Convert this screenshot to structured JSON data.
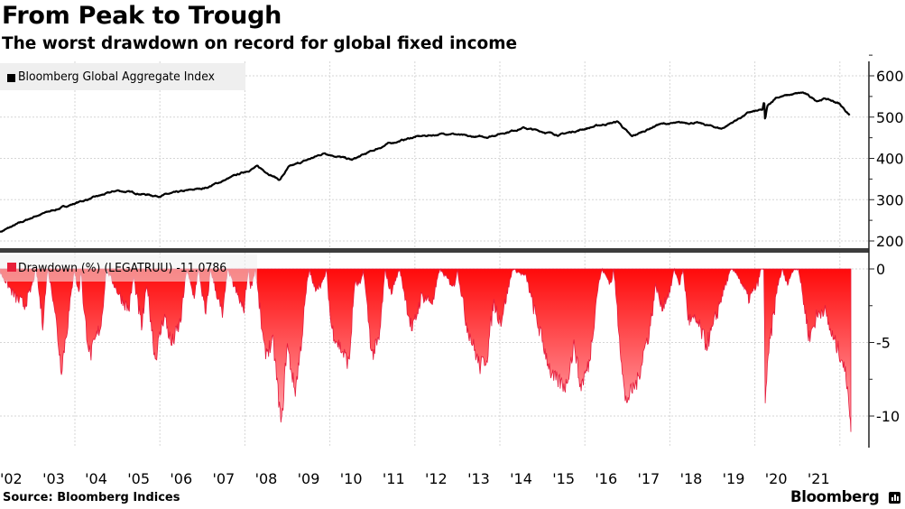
{
  "header": {
    "title": "From Peak to Trough",
    "subtitle": "The worst drawdown on record for global fixed income"
  },
  "footer": {
    "source": "Source: Bloomberg Indices",
    "brand": "Bloomberg"
  },
  "chart_data": [
    {
      "type": "line",
      "legend": "Bloomberg Global Aggregate Index",
      "legend_placement": "top-left",
      "color": "#000000",
      "xlim": [
        2002.24,
        2022.26
      ],
      "ylim": [
        190,
        630
      ],
      "y_ticks": [
        "200",
        "300",
        "400",
        "500",
        "600"
      ],
      "y_axis_side": "right",
      "grid": true,
      "x_tick_labels": [
        "'02",
        "'03",
        "'04",
        "'05",
        "'06",
        "'07",
        "'08",
        "'09",
        "'10",
        "'11",
        "'12",
        "'13",
        "'14",
        "'15",
        "'16",
        "'17",
        "'18",
        "'19",
        "'20",
        "'21"
      ],
      "points": [
        [
          2002.24,
          222
        ],
        [
          2003.09,
          261
        ],
        [
          2004.15,
          296
        ],
        [
          2005.0,
          322
        ],
        [
          2005.95,
          309
        ],
        [
          2007.12,
          330
        ],
        [
          2008.29,
          380
        ],
        [
          2008.82,
          348
        ],
        [
          2009.03,
          378
        ],
        [
          2009.88,
          413
        ],
        [
          2010.52,
          396
        ],
        [
          2011.37,
          435
        ],
        [
          2012.0,
          452
        ],
        [
          2012.85,
          461
        ],
        [
          2013.28,
          452
        ],
        [
          2013.7,
          452
        ],
        [
          2014.55,
          474
        ],
        [
          2015.4,
          457
        ],
        [
          2016.25,
          478
        ],
        [
          2016.78,
          489
        ],
        [
          2017.1,
          452
        ],
        [
          2017.74,
          483
        ],
        [
          2018.59,
          487
        ],
        [
          2019.22,
          472
        ],
        [
          2019.86,
          511
        ],
        [
          2020.18,
          517
        ],
        [
          2020.22,
          538
        ],
        [
          2020.24,
          490
        ],
        [
          2020.29,
          525
        ],
        [
          2020.5,
          548
        ],
        [
          2021.13,
          559
        ],
        [
          2021.45,
          540
        ],
        [
          2021.66,
          545
        ],
        [
          2021.98,
          533
        ],
        [
          2022.24,
          504
        ]
      ]
    },
    {
      "type": "area",
      "legend": "Drawdown (%) (LEGATRUU)",
      "last_value": "-11.0786",
      "legend_placement": "top-left",
      "color": "#ff0000",
      "ylim": [
        -12.2,
        0.8
      ],
      "y_ticks": [
        "0",
        "-5",
        "-10"
      ],
      "y_axis_side": "right",
      "grid": true,
      "points": [
        [
          2002.24,
          -0.2
        ],
        [
          2002.6,
          -1.9
        ],
        [
          2002.81,
          -2.4
        ],
        [
          2002.94,
          -1.6
        ],
        [
          2003.09,
          0
        ],
        [
          2003.24,
          -3.6
        ],
        [
          2003.36,
          0
        ],
        [
          2003.51,
          -2.2
        ],
        [
          2003.68,
          -6.75
        ],
        [
          2003.87,
          -2.8
        ],
        [
          2003.98,
          0
        ],
        [
          2004.09,
          -1.6
        ],
        [
          2004.15,
          0
        ],
        [
          2004.21,
          -2.8
        ],
        [
          2004.36,
          -5.9
        ],
        [
          2004.62,
          -3.6
        ],
        [
          2004.74,
          0
        ],
        [
          2005.06,
          -1.8
        ],
        [
          2005.27,
          -2.7
        ],
        [
          2005.38,
          -0.5
        ],
        [
          2005.57,
          -3.9
        ],
        [
          2005.7,
          -1.0
        ],
        [
          2005.89,
          -6.1
        ],
        [
          2006.1,
          -3.0
        ],
        [
          2006.27,
          -5.1
        ],
        [
          2006.48,
          -3.6
        ],
        [
          2006.63,
          0
        ],
        [
          2006.8,
          -1.9
        ],
        [
          2006.91,
          0
        ],
        [
          2007.08,
          -3.2
        ],
        [
          2007.19,
          0
        ],
        [
          2007.48,
          -3.2
        ],
        [
          2007.59,
          0
        ],
        [
          2007.97,
          -2.8
        ],
        [
          2008.08,
          0
        ],
        [
          2008.14,
          -1.2
        ],
        [
          2008.25,
          0
        ],
        [
          2008.46,
          -5.6
        ],
        [
          2008.67,
          -5.0
        ],
        [
          2008.86,
          -10.7
        ],
        [
          2008.99,
          -5.0
        ],
        [
          2009.18,
          -8.3
        ],
        [
          2009.31,
          -5.4
        ],
        [
          2009.46,
          -1.0
        ],
        [
          2009.52,
          0
        ],
        [
          2009.63,
          -1.3
        ],
        [
          2009.84,
          -0.9
        ],
        [
          2009.92,
          0
        ],
        [
          2010.03,
          -3.8
        ],
        [
          2010.16,
          -4.8
        ],
        [
          2010.45,
          -6.4
        ],
        [
          2010.58,
          -1.0
        ],
        [
          2010.73,
          -1.0
        ],
        [
          2010.79,
          0
        ],
        [
          2010.99,
          -5.8
        ],
        [
          2011.16,
          -4.8
        ],
        [
          2011.3,
          0
        ],
        [
          2011.43,
          -1.6
        ],
        [
          2011.64,
          0
        ],
        [
          2011.94,
          -4.2
        ],
        [
          2012.15,
          -1.8
        ],
        [
          2012.43,
          -2.2
        ],
        [
          2012.58,
          0
        ],
        [
          2012.92,
          -1.2
        ],
        [
          2013.0,
          0
        ],
        [
          2013.22,
          -3.7
        ],
        [
          2013.53,
          -6.6
        ],
        [
          2013.7,
          -5.9
        ],
        [
          2013.85,
          -2.2
        ],
        [
          2014.02,
          -3.5
        ],
        [
          2014.3,
          0
        ],
        [
          2014.62,
          -0.5
        ],
        [
          2014.83,
          -3.0
        ],
        [
          2015.23,
          -7.3
        ],
        [
          2015.55,
          -7.9
        ],
        [
          2015.76,
          -5.0
        ],
        [
          2015.89,
          -8.0
        ],
        [
          2016.1,
          -6.4
        ],
        [
          2016.29,
          -1.5
        ],
        [
          2016.4,
          0
        ],
        [
          2016.61,
          -1.0
        ],
        [
          2016.68,
          0
        ],
        [
          2016.95,
          -9.0
        ],
        [
          2017.25,
          -7.5
        ],
        [
          2017.38,
          -5.6
        ],
        [
          2017.52,
          -4.2
        ],
        [
          2017.67,
          -1.0
        ],
        [
          2017.8,
          -2.6
        ],
        [
          2018.01,
          -1.4
        ],
        [
          2018.1,
          0
        ],
        [
          2018.23,
          -1.0
        ],
        [
          2018.31,
          0
        ],
        [
          2018.44,
          -3.4
        ],
        [
          2018.65,
          -3.6
        ],
        [
          2018.86,
          -5.1
        ],
        [
          2019.01,
          -4.0
        ],
        [
          2019.22,
          -1.8
        ],
        [
          2019.44,
          0
        ],
        [
          2019.58,
          -0.3
        ],
        [
          2019.86,
          -2.0
        ],
        [
          2020.07,
          -1.0
        ],
        [
          2020.14,
          0
        ],
        [
          2020.22,
          0
        ],
        [
          2020.24,
          -8.8
        ],
        [
          2020.35,
          -5.0
        ],
        [
          2020.54,
          -1.0
        ],
        [
          2020.65,
          0
        ],
        [
          2020.75,
          -1.0
        ],
        [
          2020.92,
          0
        ],
        [
          2021.03,
          0
        ],
        [
          2021.28,
          -4.6
        ],
        [
          2021.45,
          -3.2
        ],
        [
          2021.62,
          -2.6
        ],
        [
          2021.83,
          -4.6
        ],
        [
          2022.05,
          -6.0
        ],
        [
          2022.2,
          -8.1
        ],
        [
          2022.26,
          -11.08
        ]
      ]
    }
  ]
}
